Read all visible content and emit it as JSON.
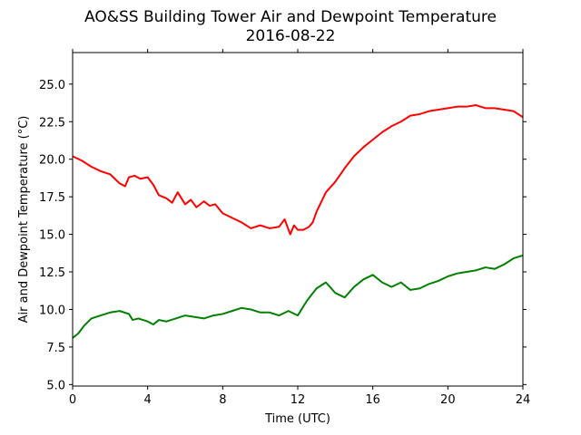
{
  "chart_data": {
    "type": "line",
    "title": "AO&SS Building Tower Air and Dewpoint Temperature",
    "subtitle": "2016-08-22",
    "xlabel": "Time (UTC)",
    "ylabel": "Air and Dewpoint Temperature (°C)",
    "xlim": [
      0,
      24
    ],
    "ylim": [
      4.9,
      27.1
    ],
    "x_ticks": [
      0,
      4,
      8,
      12,
      16,
      20,
      24
    ],
    "x_tick_labels": [
      "0",
      "4",
      "8",
      "12",
      "16",
      "20",
      "24"
    ],
    "y_ticks": [
      5.0,
      7.5,
      10.0,
      12.5,
      15.0,
      17.5,
      20.0,
      22.5,
      25.0
    ],
    "y_tick_labels": [
      "5.0",
      "7.5",
      "10.0",
      "12.5",
      "15.0",
      "17.5",
      "20.0",
      "22.5",
      "25.0"
    ],
    "grid": false,
    "series": [
      {
        "color": "#ff0000",
        "x": [
          0,
          0.5,
          1,
          1.5,
          2,
          2.5,
          2.8,
          3,
          3.3,
          3.6,
          4,
          4.3,
          4.6,
          5,
          5.3,
          5.6,
          6,
          6.3,
          6.6,
          7,
          7.3,
          7.6,
          8,
          8.5,
          9,
          9.5,
          10,
          10.5,
          11,
          11.3,
          11.6,
          11.8,
          12,
          12.3,
          12.6,
          12.8,
          13,
          13.5,
          14,
          14.5,
          15,
          15.5,
          16,
          16.5,
          17,
          17.5,
          18,
          18.5,
          19,
          19.5,
          20,
          20.5,
          21,
          21.5,
          22,
          22.5,
          23,
          23.5,
          24
        ],
        "y": [
          20.2,
          19.9,
          19.5,
          19.2,
          19.0,
          18.4,
          18.2,
          18.8,
          18.9,
          18.7,
          18.8,
          18.3,
          17.6,
          17.4,
          17.1,
          17.8,
          17.0,
          17.3,
          16.8,
          17.2,
          16.9,
          17.0,
          16.4,
          16.1,
          15.8,
          15.4,
          15.6,
          15.4,
          15.5,
          16.0,
          15.0,
          15.6,
          15.3,
          15.3,
          15.5,
          15.8,
          16.5,
          17.8,
          18.5,
          19.4,
          20.2,
          20.8,
          21.3,
          21.8,
          22.2,
          22.5,
          22.9,
          23.0,
          23.2,
          23.3,
          23.4,
          23.5,
          23.5,
          23.6,
          23.4,
          23.4,
          23.3,
          23.2,
          22.8
        ]
      },
      {
        "color": "#008000",
        "x": [
          0,
          0.3,
          0.6,
          1,
          1.5,
          2,
          2.5,
          3,
          3.2,
          3.5,
          4,
          4.3,
          4.6,
          5,
          5.5,
          6,
          6.5,
          7,
          7.5,
          8,
          8.5,
          9,
          9.5,
          10,
          10.5,
          11,
          11.5,
          12,
          12.5,
          13,
          13.5,
          14,
          14.5,
          15,
          15.5,
          16,
          16.5,
          17,
          17.5,
          18,
          18.5,
          19,
          19.5,
          20,
          20.5,
          21,
          21.5,
          22,
          22.5,
          23,
          23.5,
          24
        ],
        "y": [
          8.1,
          8.4,
          8.9,
          9.4,
          9.6,
          9.8,
          9.9,
          9.7,
          9.3,
          9.4,
          9.2,
          9.0,
          9.3,
          9.2,
          9.4,
          9.6,
          9.5,
          9.4,
          9.6,
          9.7,
          9.9,
          10.1,
          10.0,
          9.8,
          9.8,
          9.6,
          9.9,
          9.6,
          10.6,
          11.4,
          11.8,
          11.1,
          10.8,
          11.5,
          12.0,
          12.3,
          11.8,
          11.5,
          11.8,
          11.3,
          11.4,
          11.7,
          11.9,
          12.2,
          12.4,
          12.5,
          12.6,
          12.8,
          12.7,
          13.0,
          13.4,
          13.6
        ]
      }
    ]
  }
}
